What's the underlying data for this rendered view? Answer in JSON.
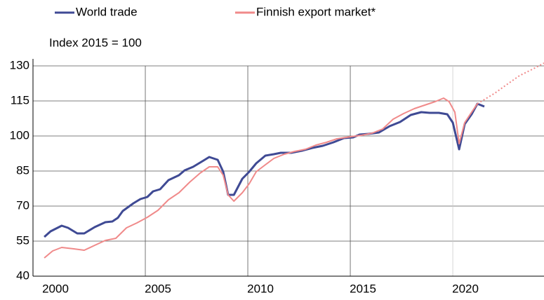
{
  "chart_data": {
    "type": "line",
    "subtitle": "Index 2015 = 100",
    "xlim": [
      1999.52,
      2024.45
    ],
    "xticks": [
      2000,
      2005,
      2010,
      2015,
      2020
    ],
    "ylim": [
      40,
      130
    ],
    "yticks": [
      40,
      55,
      70,
      85,
      100,
      115,
      130
    ],
    "grid": true,
    "series": [
      {
        "name": "World trade",
        "color": "#3f4a94",
        "x": [
          2000.07,
          2000.38,
          2000.92,
          2001.23,
          2001.68,
          2002.02,
          2002.53,
          2003.05,
          2003.39,
          2003.66,
          2003.9,
          2004.42,
          2004.76,
          2005.1,
          2005.38,
          2005.72,
          2006.13,
          2006.64,
          2006.92,
          2007.33,
          2007.84,
          2008.12,
          2008.53,
          2008.8,
          2009.04,
          2009.32,
          2009.73,
          2010.07,
          2010.41,
          2010.86,
          2011.27,
          2011.61,
          2012.12,
          2012.64,
          2013.15,
          2013.66,
          2014.18,
          2014.69,
          2015.14,
          2015.45,
          2015.89,
          2016.4,
          2016.92,
          2017.43,
          2017.95,
          2018.46,
          2018.87,
          2019.32,
          2019.73,
          2020.0,
          2020.31,
          2020.58,
          2020.92,
          2021.2,
          2021.54
        ],
        "values": [
          56.8,
          59.2,
          61.6,
          60.7,
          58.3,
          58.3,
          61,
          63.1,
          63.4,
          65,
          67.9,
          71.2,
          73,
          73.9,
          76.3,
          77.2,
          81.1,
          83.2,
          85.3,
          86.8,
          89.5,
          91,
          89.8,
          84.7,
          74.8,
          74.8,
          81.7,
          84.7,
          88.3,
          91.6,
          92.2,
          92.8,
          92.8,
          93.7,
          94.9,
          95.8,
          97.3,
          99.1,
          99.4,
          100.6,
          100.9,
          101.5,
          104.2,
          106,
          109,
          110.2,
          109.9,
          109.9,
          109.3,
          105.7,
          94.3,
          105.1,
          109.3,
          113.8,
          112.6
        ]
      },
      {
        "name": "Finnish export market*",
        "color": "#f08a8a",
        "dotted_from_index": 47,
        "x": [
          2000.07,
          2000.48,
          2000.92,
          2001.51,
          2002.02,
          2002.53,
          2003.05,
          2003.56,
          2004.08,
          2004.59,
          2005.1,
          2005.62,
          2006.13,
          2006.64,
          2007.16,
          2007.67,
          2008.12,
          2008.53,
          2008.8,
          2009.04,
          2009.32,
          2009.73,
          2010.07,
          2010.41,
          2010.86,
          2011.27,
          2011.78,
          2012.29,
          2012.81,
          2013.32,
          2013.84,
          2014.35,
          2015.03,
          2015.55,
          2016.06,
          2016.58,
          2017.09,
          2017.6,
          2018.12,
          2018.63,
          2019.14,
          2019.55,
          2019.82,
          2020.1,
          2020.31,
          2020.58,
          2020.92,
          2021.2,
          2021.54,
          2022.05,
          2022.57,
          2023.25,
          2023.94,
          2024.45
        ],
        "values": [
          47.8,
          50.8,
          52.3,
          51.7,
          51.1,
          53.2,
          55.3,
          56.2,
          60.7,
          62.8,
          65.2,
          68.2,
          72.7,
          75.7,
          80.2,
          84.1,
          86.8,
          86.8,
          83.2,
          74.8,
          72.1,
          75.7,
          79.6,
          84.7,
          87.7,
          90.4,
          92.2,
          93.4,
          94.3,
          96.1,
          97.3,
          98.8,
          99.7,
          100.3,
          101.2,
          103,
          107.2,
          109.6,
          111.7,
          113.2,
          114.7,
          116.2,
          114.7,
          110.2,
          96.7,
          105.7,
          110.2,
          113.8,
          115.6,
          118.3,
          121.6,
          125.8,
          128.8,
          131.2
        ]
      }
    ]
  }
}
